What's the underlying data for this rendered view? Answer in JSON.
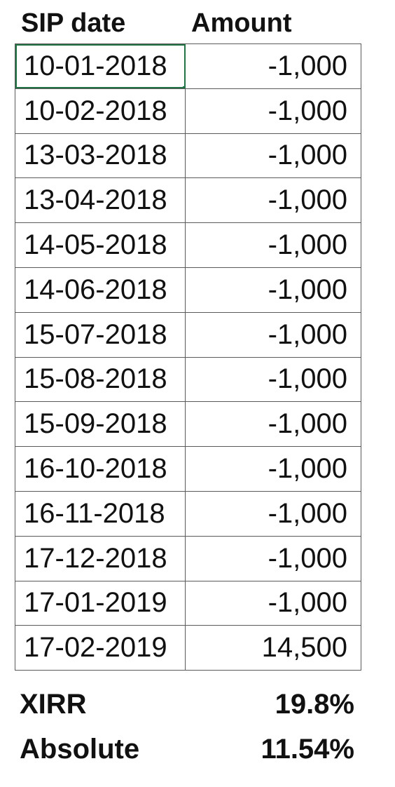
{
  "headers": {
    "date": "SIP date",
    "amount": "Amount"
  },
  "rows": [
    {
      "date": "10-01-2018",
      "amount": "-1,000"
    },
    {
      "date": "10-02-2018",
      "amount": "-1,000"
    },
    {
      "date": "13-03-2018",
      "amount": "-1,000"
    },
    {
      "date": "13-04-2018",
      "amount": "-1,000"
    },
    {
      "date": "14-05-2018",
      "amount": "-1,000"
    },
    {
      "date": "14-06-2018",
      "amount": "-1,000"
    },
    {
      "date": "15-07-2018",
      "amount": "-1,000"
    },
    {
      "date": "15-08-2018",
      "amount": "-1,000"
    },
    {
      "date": "15-09-2018",
      "amount": "-1,000"
    },
    {
      "date": "16-10-2018",
      "amount": "-1,000"
    },
    {
      "date": "16-11-2018",
      "amount": "-1,000"
    },
    {
      "date": "17-12-2018",
      "amount": "-1,000"
    },
    {
      "date": "17-01-2019",
      "amount": "-1,000"
    },
    {
      "date": "17-02-2019",
      "amount": "14,500"
    }
  ],
  "summary": {
    "xirr_label": "XIRR",
    "xirr_value": "19.8%",
    "absolute_label": "Absolute",
    "absolute_value": "11.54%"
  },
  "colors": {
    "selection": "#217346",
    "gridline": "#5a5a5a"
  }
}
